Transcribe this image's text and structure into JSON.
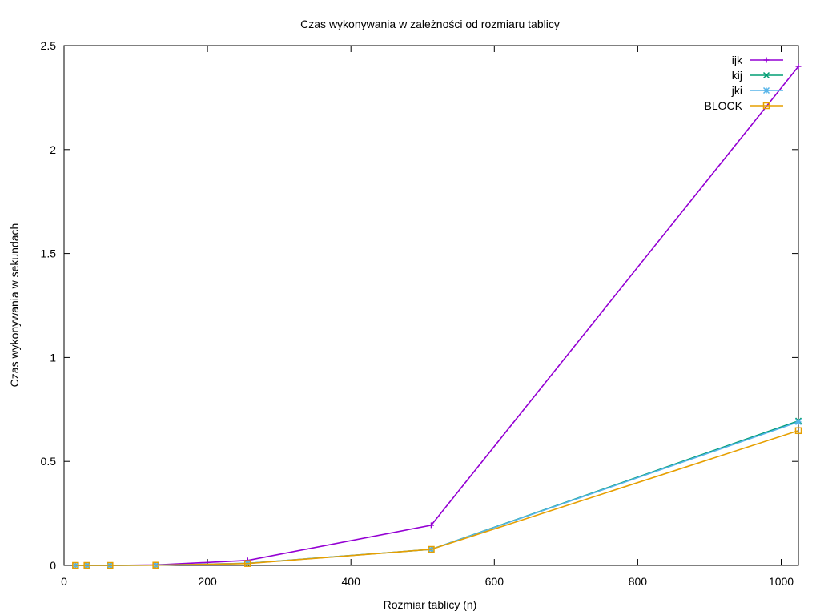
{
  "chart_data": {
    "type": "line",
    "title": "Czas wykonywania w zależności od rozmiaru tablicy",
    "xlabel": "Rozmiar tablicy (n)",
    "ylabel": "Czas wykonywania w sekundach",
    "xlim": [
      0,
      1024
    ],
    "ylim": [
      0,
      2.5
    ],
    "xticks": [
      "0",
      "200",
      "400",
      "600",
      "800",
      "1000"
    ],
    "yticks": [
      "0",
      "0.5",
      "1",
      "1.5",
      "2",
      "2.5"
    ],
    "grid": false,
    "legend_position": "top-right",
    "x": [
      16,
      32,
      64,
      128,
      256,
      512,
      1024
    ],
    "series": [
      {
        "name": "ijk",
        "color": "#9400d3",
        "marker": "plus",
        "values": [
          0.0,
          0.0,
          0.0,
          0.002,
          0.024,
          0.193,
          2.4
        ]
      },
      {
        "name": "kij",
        "color": "#009e73",
        "marker": "cross",
        "values": [
          0.0,
          0.0,
          0.0,
          0.001,
          0.01,
          0.077,
          0.695
        ]
      },
      {
        "name": "jki",
        "color": "#56b4e9",
        "marker": "star",
        "values": [
          0.0,
          0.0,
          0.0,
          0.001,
          0.01,
          0.077,
          0.69
        ]
      },
      {
        "name": "BLOCK",
        "color": "#e69f00",
        "marker": "square",
        "values": [
          0.0,
          0.0,
          0.0,
          0.001,
          0.009,
          0.077,
          0.648
        ]
      }
    ]
  }
}
